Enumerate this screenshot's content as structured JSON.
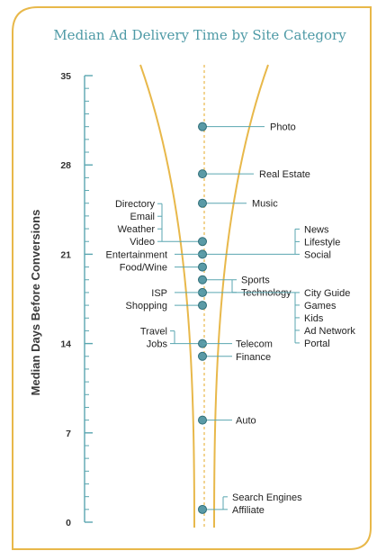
{
  "chart_data": {
    "type": "scatter",
    "title": "Median Ad Delivery Time by Site Category",
    "ylabel": "Median Days Before Conversions",
    "ylim": [
      0,
      35
    ],
    "yticks": [
      "0",
      "7",
      "14",
      "21",
      "28",
      "35"
    ],
    "grid": false,
    "colors": {
      "frame": "#e8b84a",
      "axis": "#5aa6b0",
      "point": "#5a9aa6",
      "dashed": "#e8b84a"
    },
    "groups": [
      {
        "value": 31.0,
        "side": "right",
        "labels": [
          "Photo"
        ]
      },
      {
        "value": 27.3,
        "side": "right",
        "labels": [
          "Real Estate"
        ]
      },
      {
        "value": 25.0,
        "side": "right",
        "labels": [
          "Music"
        ]
      },
      {
        "value": 22.0,
        "side": "left",
        "labels": [
          "Directory",
          "Email",
          "Weather",
          "Video"
        ]
      },
      {
        "value": 21.0,
        "side": "right",
        "labels": [
          "News",
          "Lifestyle",
          "Social"
        ]
      },
      {
        "value": 21.0,
        "side": "left",
        "labels": [
          "Entertainment"
        ]
      },
      {
        "value": 20.0,
        "side": "left",
        "labels": [
          "Food/Wine"
        ]
      },
      {
        "value": 19.0,
        "side": "right",
        "labels": [
          "Sports",
          "Technology"
        ]
      },
      {
        "value": 18.0,
        "side": "right",
        "labels": [
          "City Guide",
          "Games",
          "Kids",
          "Ad Network",
          "Portal"
        ]
      },
      {
        "value": 18.0,
        "side": "left",
        "labels": [
          "ISP"
        ]
      },
      {
        "value": 17.0,
        "side": "left",
        "labels": [
          "Shopping"
        ]
      },
      {
        "value": 14.0,
        "side": "left",
        "labels": [
          "Travel",
          "Jobs"
        ]
      },
      {
        "value": 14.0,
        "side": "right",
        "labels": [
          "Telecom"
        ]
      },
      {
        "value": 13.0,
        "side": "right",
        "labels": [
          "Finance"
        ]
      },
      {
        "value": 8.0,
        "side": "right",
        "labels": [
          "Auto"
        ]
      },
      {
        "value": 1.0,
        "side": "right",
        "labels": [
          "Search Engines",
          "Affiliate"
        ]
      }
    ]
  }
}
